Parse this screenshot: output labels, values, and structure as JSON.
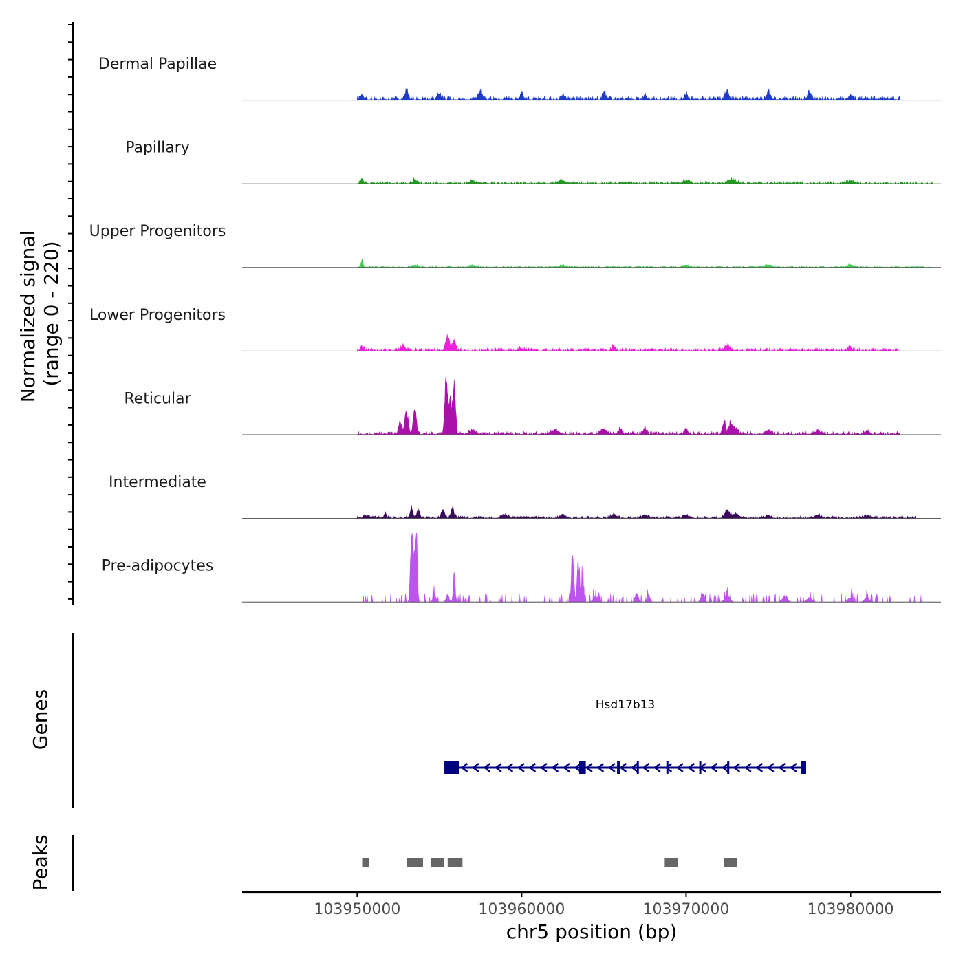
{
  "chart_data": {
    "type": "area",
    "title": "",
    "xlabel": "chr5 position (bp)",
    "ylabel": "Normalized signal",
    "ylabel_range": "(range 0 - 220)",
    "chromosome": "chr5",
    "x_range": [
      103943000,
      103985500
    ],
    "x_ticks": [
      103950000,
      103960000,
      103970000,
      103980000
    ],
    "x_tick_labels": [
      "103950000",
      "103960000",
      "103970000",
      "103980000"
    ],
    "signal_range": [
      0,
      220
    ],
    "tracks": [
      {
        "name": "Dermal Papillae",
        "color": "#1f3cc8",
        "peaks": [
          [
            103950300,
            8,
            90
          ],
          [
            103953000,
            12,
            110
          ],
          [
            103955000,
            8,
            100
          ],
          [
            103957500,
            10,
            120
          ],
          [
            103960000,
            8,
            100
          ],
          [
            103962500,
            6,
            90
          ],
          [
            103965000,
            10,
            90
          ],
          [
            103967500,
            6,
            100
          ],
          [
            103970000,
            8,
            90
          ],
          [
            103972500,
            10,
            110
          ],
          [
            103975000,
            10,
            120
          ],
          [
            103977500,
            10,
            120
          ],
          [
            103980000,
            8,
            100
          ]
        ],
        "noise": 5,
        "extent": [
          103950000,
          103983000
        ],
        "seed": 11
      },
      {
        "name": "Papillary",
        "color": "#1f9a1f",
        "peaks": [
          [
            103950300,
            6,
            90
          ],
          [
            103953500,
            5,
            120
          ],
          [
            103957000,
            4,
            150
          ],
          [
            103962500,
            4,
            200
          ],
          [
            103970000,
            4,
            200
          ],
          [
            103972800,
            5,
            250
          ],
          [
            103980000,
            4,
            200
          ]
        ],
        "noise": 3,
        "extent": [
          103950000,
          103985000
        ],
        "seed": 22
      },
      {
        "name": "Upper Progenitors",
        "color": "#44cc55",
        "peaks": [
          [
            103950300,
            9,
            70
          ],
          [
            103953500,
            3,
            200
          ],
          [
            103957000,
            3,
            200
          ],
          [
            103962500,
            3,
            200
          ],
          [
            103970000,
            3,
            200
          ],
          [
            103975000,
            3,
            200
          ],
          [
            103980000,
            3,
            200
          ]
        ],
        "noise": 2,
        "extent": [
          103950000,
          103985000
        ],
        "seed": 33
      },
      {
        "name": "Lower Progenitors",
        "color": "#ee22dd",
        "peaks": [
          [
            103950300,
            6,
            90
          ],
          [
            103952800,
            6,
            150
          ],
          [
            103955500,
            20,
            120
          ],
          [
            103955900,
            12,
            100
          ],
          [
            103960000,
            3,
            200
          ],
          [
            103965600,
            8,
            90
          ],
          [
            103972500,
            8,
            180
          ],
          [
            103980000,
            4,
            120
          ]
        ],
        "noise": 4,
        "extent": [
          103950000,
          103983000
        ],
        "seed": 44
      },
      {
        "name": "Reticular",
        "color": "#aa11aa",
        "peaks": [
          [
            103953000,
            30,
            110
          ],
          [
            103953500,
            35,
            90
          ],
          [
            103952600,
            16,
            90
          ],
          [
            103955400,
            78,
            80
          ],
          [
            103955900,
            62,
            80
          ],
          [
            103955650,
            45,
            110
          ],
          [
            103957000,
            5,
            200
          ],
          [
            103962000,
            6,
            200
          ],
          [
            103965000,
            6,
            200
          ],
          [
            103966000,
            8,
            100
          ],
          [
            103967500,
            10,
            90
          ],
          [
            103970000,
            8,
            100
          ],
          [
            103972300,
            18,
            90
          ],
          [
            103972700,
            16,
            110
          ],
          [
            103973000,
            8,
            120
          ],
          [
            103975000,
            6,
            150
          ],
          [
            103978000,
            4,
            200
          ],
          [
            103981000,
            4,
            150
          ]
        ],
        "noise": 4,
        "extent": [
          103950000,
          103983000
        ],
        "seed": 55
      },
      {
        "name": "Intermediate",
        "color": "#3a0a5a",
        "peaks": [
          [
            103950500,
            4,
            120
          ],
          [
            103951700,
            8,
            70
          ],
          [
            103953300,
            14,
            90
          ],
          [
            103953700,
            10,
            90
          ],
          [
            103955200,
            10,
            100
          ],
          [
            103955800,
            12,
            100
          ],
          [
            103959000,
            4,
            200
          ],
          [
            103962500,
            5,
            150
          ],
          [
            103965600,
            5,
            150
          ],
          [
            103967500,
            5,
            150
          ],
          [
            103970000,
            4,
            150
          ],
          [
            103972500,
            10,
            150
          ],
          [
            103973000,
            6,
            200
          ],
          [
            103975000,
            4,
            150
          ],
          [
            103978000,
            4,
            200
          ],
          [
            103981000,
            4,
            150
          ]
        ],
        "noise": 3,
        "extent": [
          103950000,
          103984000
        ],
        "seed": 66
      },
      {
        "name": "Pre-adipocytes",
        "color": "#bb55ee",
        "peaks": [
          [
            103953300,
            75,
            70
          ],
          [
            103953600,
            88,
            60
          ],
          [
            103953450,
            60,
            90
          ],
          [
            103954700,
            12,
            90
          ],
          [
            103955900,
            38,
            60
          ],
          [
            103955500,
            10,
            90
          ],
          [
            103963100,
            75,
            70
          ],
          [
            103963450,
            60,
            70
          ],
          [
            103963700,
            45,
            60
          ],
          [
            103964500,
            8,
            150
          ],
          [
            103967000,
            14,
            90
          ],
          [
            103967700,
            10,
            90
          ],
          [
            103971000,
            12,
            100
          ],
          [
            103972500,
            10,
            150
          ],
          [
            103976000,
            8,
            150
          ],
          [
            103977500,
            6,
            150
          ],
          [
            103980000,
            6,
            150
          ],
          [
            103981000,
            6,
            150
          ]
        ],
        "noise": 4,
        "sparse": true,
        "extent": [
          103950000,
          103984500
        ],
        "seed": 77
      }
    ],
    "genes": [
      {
        "name": "Hsd17b13",
        "strand": "-",
        "start": 103955300,
        "end": 103977300,
        "exons": [
          [
            103955300,
            103956200
          ],
          [
            103963500,
            103963900
          ],
          [
            103965800,
            103966000
          ],
          [
            103967000,
            103967100
          ],
          [
            103968800,
            103968900
          ],
          [
            103970800,
            103970900
          ],
          [
            103972500,
            103972600
          ],
          [
            103977000,
            103977300
          ]
        ]
      }
    ],
    "peak_regions": [
      [
        103950300,
        103950700
      ],
      [
        103953000,
        103954000
      ],
      [
        103954500,
        103955300
      ],
      [
        103955500,
        103956400
      ],
      [
        103968700,
        103969500
      ],
      [
        103972300,
        103973100
      ]
    ],
    "panel_labels": {
      "genes": "Genes",
      "peaks": "Peaks"
    },
    "colors": {
      "axis": "#000000",
      "baseline": "#555555",
      "gene": "#000080",
      "peak": "#666666"
    }
  }
}
